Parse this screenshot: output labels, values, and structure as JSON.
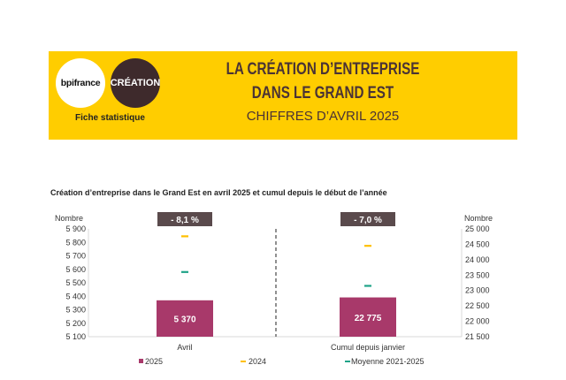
{
  "header": {
    "logo_bpi": "bpifrance",
    "logo_creation": "CRÉATION",
    "subtitle_left": "Fiche statistique",
    "title_line1": "LA CRÉATION D’ENTREPRISE",
    "title_line2": "DANS LE GRAND EST",
    "title_line3": "CHIFFRES D’AVRIL 2025",
    "banner_color": "#ffcd00"
  },
  "chart_data": {
    "type": "bar",
    "title": "Création d’entreprise dans le Grand Est en avril 2025 et cumul depuis le début de l’année",
    "left_axis": {
      "label": "Nombre",
      "min": 5100,
      "max": 5900,
      "ticks": [
        "5 900",
        "5 800",
        "5 700",
        "5 600",
        "5 500",
        "5 400",
        "5 300",
        "5 200",
        "5 100"
      ]
    },
    "right_axis": {
      "label": "Nombre",
      "min": 21500,
      "max": 25000,
      "ticks": [
        "25 000",
        "24 500",
        "24 000",
        "23 500",
        "23 000",
        "22 500",
        "22 000",
        "21 500"
      ]
    },
    "categories": [
      "Avril",
      "Cumul depuis janvier"
    ],
    "series": [
      {
        "name": "2025",
        "values": [
          5370,
          22775
        ],
        "labels": [
          "5 370",
          "22 775"
        ],
        "color": "#a8396a"
      },
      {
        "name": "2024",
        "values": [
          5845,
          24450
        ],
        "color": "#ffc000"
      },
      {
        "name": "Moyenne 2021-2025",
        "values": [
          5580,
          23150
        ],
        "color": "#1fa388"
      }
    ],
    "variations": [
      "- 8,1 %",
      "- 7,0 %"
    ]
  }
}
